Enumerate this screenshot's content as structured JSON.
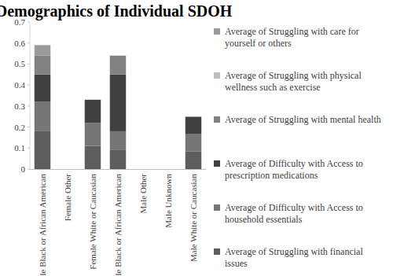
{
  "chart_data": {
    "type": "bar",
    "title": "Demographics of Individual SDOH",
    "stacked": true,
    "grid": false,
    "legend": "right",
    "categories": [
      "Female Black or African American",
      "Female Other",
      "Female White or Caucasian",
      "Male Black or African American",
      "Male Other",
      "Male Unknown",
      "Male White or Caucasian"
    ],
    "ylim": [
      0,
      0.7
    ],
    "yticks": [
      0,
      0.1,
      0.2,
      0.3,
      0.4,
      0.5,
      0.6,
      0.7
    ],
    "series": [
      {
        "name": "Average of Struggling with financial issues",
        "color": "#5e5e5e",
        "values": [
          0.18,
          0,
          0.11,
          0.09,
          0,
          0,
          0.083
        ]
      },
      {
        "name": "Average of Difficulty with Access to household essentials",
        "color": "#767676",
        "values": [
          0.14,
          0,
          0.11,
          0.09,
          0,
          0,
          0.083
        ]
      },
      {
        "name": "Average of Difficulty with Access to prescription medications",
        "color": "#404040",
        "values": [
          0.13,
          0,
          0.11,
          0.27,
          0,
          0,
          0.083
        ]
      },
      {
        "name": "Average of Struggling with mental health",
        "color": "#828282",
        "values": [
          0.09,
          0,
          0,
          0.09,
          0,
          0,
          0
        ]
      },
      {
        "name": "Average of Struggling with physical wellness such as exercise",
        "color": "#bdbdbd",
        "values": [
          0,
          0,
          0,
          0,
          0,
          0,
          0
        ]
      },
      {
        "name": "Average of Struggling with care for yourself or others",
        "color": "#9a9a9a",
        "values": [
          0.05,
          0,
          0,
          0,
          0,
          0,
          0
        ]
      }
    ]
  }
}
